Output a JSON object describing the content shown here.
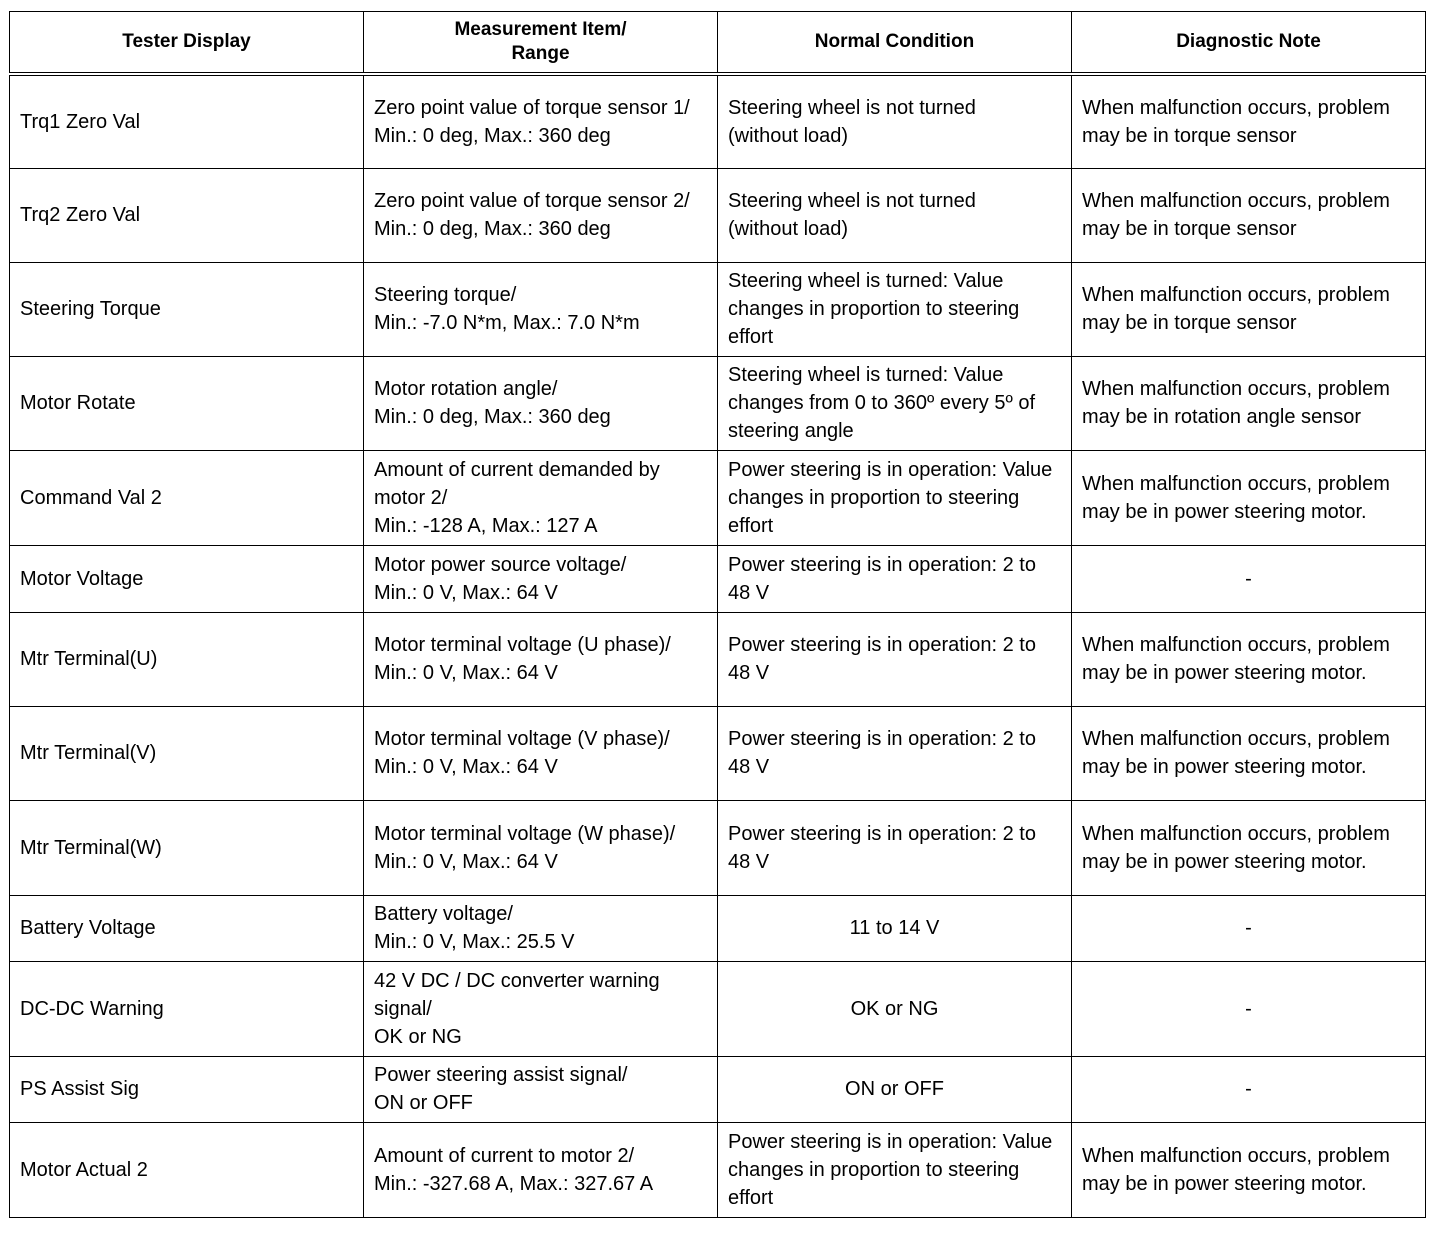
{
  "headers": [
    "Tester Display",
    "Measurement Item/\nRange",
    "Normal Condition",
    "Diagnostic Note"
  ],
  "rows": [
    {
      "display": "Trq1 Zero Val",
      "item": "Zero point value of torque sensor 1/\nMin.: 0 deg, Max.: 360 deg",
      "normal": "Steering wheel is not turned\n (without load)",
      "note": "When malfunction occurs, problem may be in torque sensor"
    },
    {
      "display": "Trq2 Zero Val",
      "item": "Zero point value of torque sensor 2/\nMin.: 0 deg, Max.: 360 deg",
      "normal": "Steering wheel is not turned\n(without load)",
      "note": "When malfunction occurs, problem may be in torque sensor"
    },
    {
      "display": "Steering Torque",
      "item": "Steering torque/\nMin.: -7.0 N*m, Max.: 7.0 N*m",
      "normal": "Steering wheel is turned: Value changes in proportion to steering effort",
      "note": "When malfunction occurs, problem may be in torque sensor"
    },
    {
      "display": "Motor Rotate",
      "item": "Motor rotation angle/\nMin.: 0 deg, Max.: 360 deg",
      "normal": "Steering wheel is turned: Value changes from 0 to 360º every 5º of steering angle",
      "note": "When malfunction occurs, problem may be in rotation angle sensor"
    },
    {
      "display": "Command Val 2",
      "item": "Amount of current demanded by motor 2/\nMin.: -128 A, Max.: 127 A",
      "normal": "Power steering is in operation: Value changes in proportion to steering effort",
      "note": "When malfunction occurs, problem may be in power steering motor."
    },
    {
      "display": "Motor Voltage",
      "item": "Motor power source voltage/\nMin.: 0 V, Max.: 64 V",
      "normal": "Power steering is in operation: 2 to 48 V",
      "note": "-"
    },
    {
      "display": "Mtr Terminal(U)",
      "item": "Motor terminal voltage (U phase)/\nMin.: 0 V, Max.: 64 V",
      "normal": "Power steering is in operation: 2 to 48 V",
      "note": "When malfunction occurs, problem may be in power steering motor."
    },
    {
      "display": "Mtr Terminal(V)",
      "item": "Motor terminal voltage (V phase)/\nMin.: 0 V, Max.: 64 V",
      "normal": "Power steering is in operation: 2 to 48 V",
      "note": "When malfunction occurs, problem may be in power steering motor."
    },
    {
      "display": "Mtr Terminal(W)",
      "item": "Motor terminal voltage (W phase)/\nMin.: 0 V, Max.: 64 V",
      "normal": "Power steering is in operation: 2 to 48 V",
      "note": "When malfunction occurs, problem may be in power steering motor."
    },
    {
      "display": "Battery Voltage",
      "item": "Battery voltage/\nMin.: 0 V, Max.: 25.5 V",
      "normal": "11 to 14 V",
      "note": "-"
    },
    {
      "display": "DC-DC Warning",
      "item": "42 V DC / DC converter warning signal/\nOK or NG",
      "normal": "OK or NG",
      "note": "-"
    },
    {
      "display": "PS Assist Sig",
      "item": "Power steering assist signal/\nON or OFF",
      "normal": "ON or OFF",
      "note": "-"
    },
    {
      "display": "Motor Actual 2",
      "item": "Amount of current to motor 2/\nMin.: -327.68 A, Max.: 327.67 A",
      "normal": "Power steering is in operation: Value changes in proportion to steering effort",
      "note": "When malfunction occurs, problem may be in power steering motor."
    }
  ]
}
